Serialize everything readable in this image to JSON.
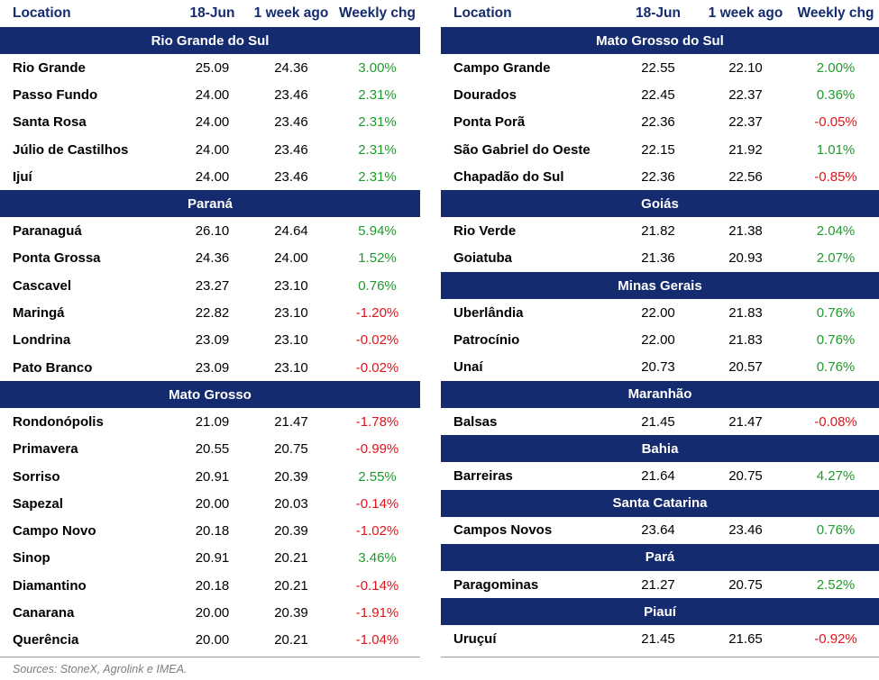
{
  "headers": {
    "location": "Location",
    "current": "18-Jun",
    "prior": "1 week ago",
    "change": "Weekly chg"
  },
  "left": [
    {
      "region": "Rio Grande do Sul",
      "rows": [
        {
          "loc": "Rio Grande",
          "now": "25.09",
          "ago": "24.36",
          "chg": "3.00%"
        },
        {
          "loc": "Passo Fundo",
          "now": "24.00",
          "ago": "23.46",
          "chg": "2.31%"
        },
        {
          "loc": "Santa Rosa",
          "now": "24.00",
          "ago": "23.46",
          "chg": "2.31%"
        },
        {
          "loc": "Júlio de Castilhos",
          "now": "24.00",
          "ago": "23.46",
          "chg": "2.31%"
        },
        {
          "loc": "Ijuí",
          "now": "24.00",
          "ago": "23.46",
          "chg": "2.31%"
        }
      ]
    },
    {
      "region": "Paraná",
      "rows": [
        {
          "loc": "Paranaguá",
          "now": "26.10",
          "ago": "24.64",
          "chg": "5.94%"
        },
        {
          "loc": "Ponta Grossa",
          "now": "24.36",
          "ago": "24.00",
          "chg": "1.52%"
        },
        {
          "loc": "Cascavel",
          "now": "23.27",
          "ago": "23.10",
          "chg": "0.76%"
        },
        {
          "loc": "Maringá",
          "now": "22.82",
          "ago": "23.10",
          "chg": "-1.20%"
        },
        {
          "loc": "Londrina",
          "now": "23.09",
          "ago": "23.10",
          "chg": "-0.02%"
        },
        {
          "loc": "Pato Branco",
          "now": "23.09",
          "ago": "23.10",
          "chg": "-0.02%"
        }
      ]
    },
    {
      "region": "Mato Grosso",
      "rows": [
        {
          "loc": "Rondonópolis",
          "now": "21.09",
          "ago": "21.47",
          "chg": "-1.78%"
        },
        {
          "loc": "Primavera",
          "now": "20.55",
          "ago": "20.75",
          "chg": "-0.99%"
        },
        {
          "loc": "Sorriso",
          "now": "20.91",
          "ago": "20.39",
          "chg": "2.55%"
        },
        {
          "loc": "Sapezal",
          "now": "20.00",
          "ago": "20.03",
          "chg": "-0.14%"
        },
        {
          "loc": "Campo Novo",
          "now": "20.18",
          "ago": "20.39",
          "chg": "-1.02%"
        },
        {
          "loc": "Sinop",
          "now": "20.91",
          "ago": "20.21",
          "chg": "3.46%"
        },
        {
          "loc": "Diamantino",
          "now": "20.18",
          "ago": "20.21",
          "chg": "-0.14%"
        },
        {
          "loc": "Canarana",
          "now": "20.00",
          "ago": "20.39",
          "chg": "-1.91%"
        },
        {
          "loc": "Querência",
          "now": "20.00",
          "ago": "20.21",
          "chg": "-1.04%"
        }
      ]
    }
  ],
  "right": [
    {
      "region": "Mato Grosso do Sul",
      "rows": [
        {
          "loc": "Campo Grande",
          "now": "22.55",
          "ago": "22.10",
          "chg": "2.00%"
        },
        {
          "loc": "Dourados",
          "now": "22.45",
          "ago": "22.37",
          "chg": "0.36%"
        },
        {
          "loc": "Ponta Porã",
          "now": "22.36",
          "ago": "22.37",
          "chg": "-0.05%"
        },
        {
          "loc": "São Gabriel do Oeste",
          "now": "22.15",
          "ago": "21.92",
          "chg": "1.01%"
        },
        {
          "loc": "Chapadão do Sul",
          "now": "22.36",
          "ago": "22.56",
          "chg": "-0.85%"
        }
      ]
    },
    {
      "region": "Goiás",
      "rows": [
        {
          "loc": "Rio Verde",
          "now": "21.82",
          "ago": "21.38",
          "chg": "2.04%"
        },
        {
          "loc": "Goiatuba",
          "now": "21.36",
          "ago": "20.93",
          "chg": "2.07%"
        }
      ]
    },
    {
      "region": "Minas Gerais",
      "rows": [
        {
          "loc": "Uberlândia",
          "now": "22.00",
          "ago": "21.83",
          "chg": "0.76%"
        },
        {
          "loc": "Patrocínio",
          "now": "22.00",
          "ago": "21.83",
          "chg": "0.76%"
        },
        {
          "loc": "Unaí",
          "now": "20.73",
          "ago": "20.57",
          "chg": "0.76%"
        }
      ]
    },
    {
      "region": "Maranhão",
      "rows": [
        {
          "loc": "Balsas",
          "now": "21.45",
          "ago": "21.47",
          "chg": "-0.08%"
        }
      ]
    },
    {
      "region": "Bahia",
      "rows": [
        {
          "loc": "Barreiras",
          "now": "21.64",
          "ago": "20.75",
          "chg": "4.27%"
        }
      ]
    },
    {
      "region": "Santa Catarina",
      "rows": [
        {
          "loc": "Campos Novos",
          "now": "23.64",
          "ago": "23.46",
          "chg": "0.76%"
        }
      ]
    },
    {
      "region": "Pará",
      "rows": [
        {
          "loc": "Paragominas",
          "now": "21.27",
          "ago": "20.75",
          "chg": "2.52%"
        }
      ]
    },
    {
      "region": "Piauí",
      "rows": [
        {
          "loc": "Uruçuí",
          "now": "21.45",
          "ago": "21.65",
          "chg": "-0.92%"
        }
      ]
    }
  ],
  "colors": {
    "header_text": "#142b6f",
    "region_bg": "#142b6f",
    "positive": "#1e9b2c",
    "negative": "#e0141b",
    "source_text": "#7d7d7d"
  },
  "source": "Sources: StoneX, Agrolink e IMEA."
}
